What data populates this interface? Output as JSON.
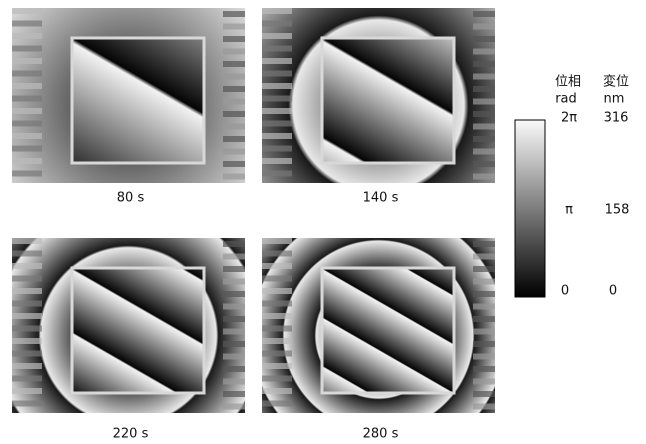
{
  "panels": [
    {
      "caption": "80 s"
    },
    {
      "caption": "140 s"
    },
    {
      "caption": "220 s"
    },
    {
      "caption": "280 s"
    }
  ],
  "colorbar": {
    "headers": [
      "位相",
      "変位"
    ],
    "units": [
      "rad",
      "nm"
    ],
    "top": [
      "2π",
      "316"
    ],
    "middle": [
      "π",
      "158"
    ],
    "bottom": [
      "0",
      "0"
    ]
  }
}
